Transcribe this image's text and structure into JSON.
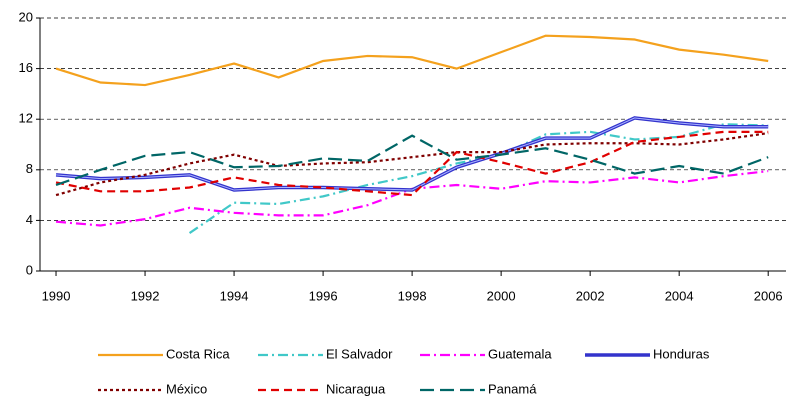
{
  "chart_data": {
    "type": "line",
    "x": [
      1990,
      1991,
      1992,
      1993,
      1994,
      1995,
      1996,
      1997,
      1998,
      1999,
      2000,
      2001,
      2002,
      2003,
      2004,
      2005,
      2006
    ],
    "xlim": [
      1989.64,
      2006.4
    ],
    "xticks": [
      1990,
      1992,
      1994,
      1996,
      1998,
      2000,
      2002,
      2004,
      2006
    ],
    "ylim": [
      0,
      20
    ],
    "yticks": [
      0,
      4,
      8,
      12,
      16,
      20
    ],
    "grid": true,
    "legend": "bottom",
    "series": [
      {
        "name": "Costa Rica",
        "color": "#f4a11d",
        "values": [
          16.0,
          14.9,
          14.7,
          15.5,
          16.4,
          15.3,
          16.6,
          17.0,
          16.9,
          16.0,
          17.3,
          18.6,
          18.5,
          18.3,
          17.5,
          17.1,
          16.6
        ]
      },
      {
        "name": "El Salvador",
        "color": "#40c8c8",
        "values": [
          null,
          null,
          null,
          3.0,
          5.4,
          5.3,
          5.9,
          6.8,
          7.5,
          8.5,
          9.2,
          10.8,
          11.0,
          10.4,
          10.6,
          11.6,
          11.5
        ]
      },
      {
        "name": "Guatemala",
        "color": "#ff00ff",
        "values": [
          3.9,
          3.6,
          4.1,
          5.0,
          4.6,
          4.4,
          4.4,
          5.2,
          6.5,
          6.8,
          6.5,
          7.1,
          7.0,
          7.4,
          7.0,
          7.5,
          7.9
        ]
      },
      {
        "name": "Honduras",
        "color": "#3333cc",
        "values": [
          7.6,
          7.3,
          7.4,
          7.6,
          6.4,
          6.6,
          6.6,
          6.5,
          6.4,
          8.2,
          9.3,
          10.5,
          10.5,
          12.1,
          11.7,
          11.4,
          11.4
        ]
      },
      {
        "name": "México",
        "color": "#800000",
        "values": [
          6.0,
          7.0,
          7.6,
          8.5,
          9.2,
          8.3,
          8.5,
          8.6,
          9.0,
          9.4,
          9.4,
          10.0,
          10.1,
          10.1,
          10.0,
          10.4,
          10.9
        ]
      },
      {
        "name": "Nicaragua",
        "color": "#e00000",
        "values": [
          7.0,
          6.3,
          6.3,
          6.6,
          7.4,
          6.8,
          6.6,
          6.3,
          6.0,
          9.4,
          8.6,
          7.7,
          8.6,
          10.2,
          10.6,
          11.0,
          11.0
        ]
      },
      {
        "name": "Panamá",
        "color": "#006666",
        "values": [
          6.8,
          8.0,
          9.1,
          9.4,
          8.2,
          8.3,
          8.9,
          8.7,
          10.7,
          8.8,
          9.2,
          9.7,
          8.8,
          7.7,
          8.3,
          7.7,
          9.0
        ]
      }
    ]
  }
}
